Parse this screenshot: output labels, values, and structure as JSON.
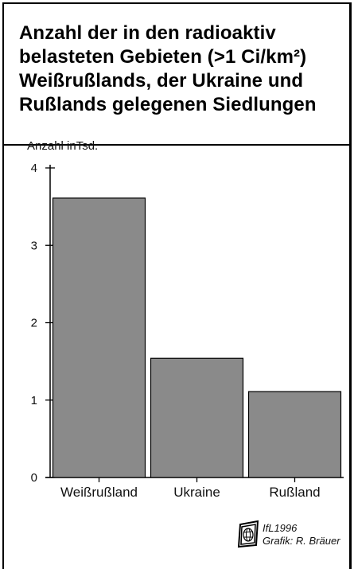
{
  "title_lines": [
    "Anzahl der in den radioaktiv",
    "belasteten Gebieten (>1 Ci/km²)",
    "Weißrußlands, der Ukraine und",
    "Rußlands gelegenen Siedlungen"
  ],
  "credit": {
    "line1": "IfL1996",
    "line2": "Grafik: R. Bräuer"
  },
  "logo_icon": "ifl-globe-logo-icon",
  "colors": {
    "bar": "#8a8a8a",
    "bar_stroke": "#000000",
    "axis": "#000000"
  },
  "chart_data": {
    "type": "bar",
    "title": "Anzahl der in den radioaktiv belasteten Gebieten (>1 Ci/km²) Weißrußlands, der Ukraine und Rußlands gelegenen Siedlungen",
    "ylabel": "Anzahl inTsd.",
    "xlabel": "",
    "categories": [
      "Weißrußland",
      "Ukraine",
      "Rußland"
    ],
    "values": [
      3.61,
      1.54,
      1.11
    ],
    "ylim": [
      0,
      4
    ],
    "yticks": [
      0,
      1,
      2,
      3,
      4
    ],
    "grid": false
  }
}
